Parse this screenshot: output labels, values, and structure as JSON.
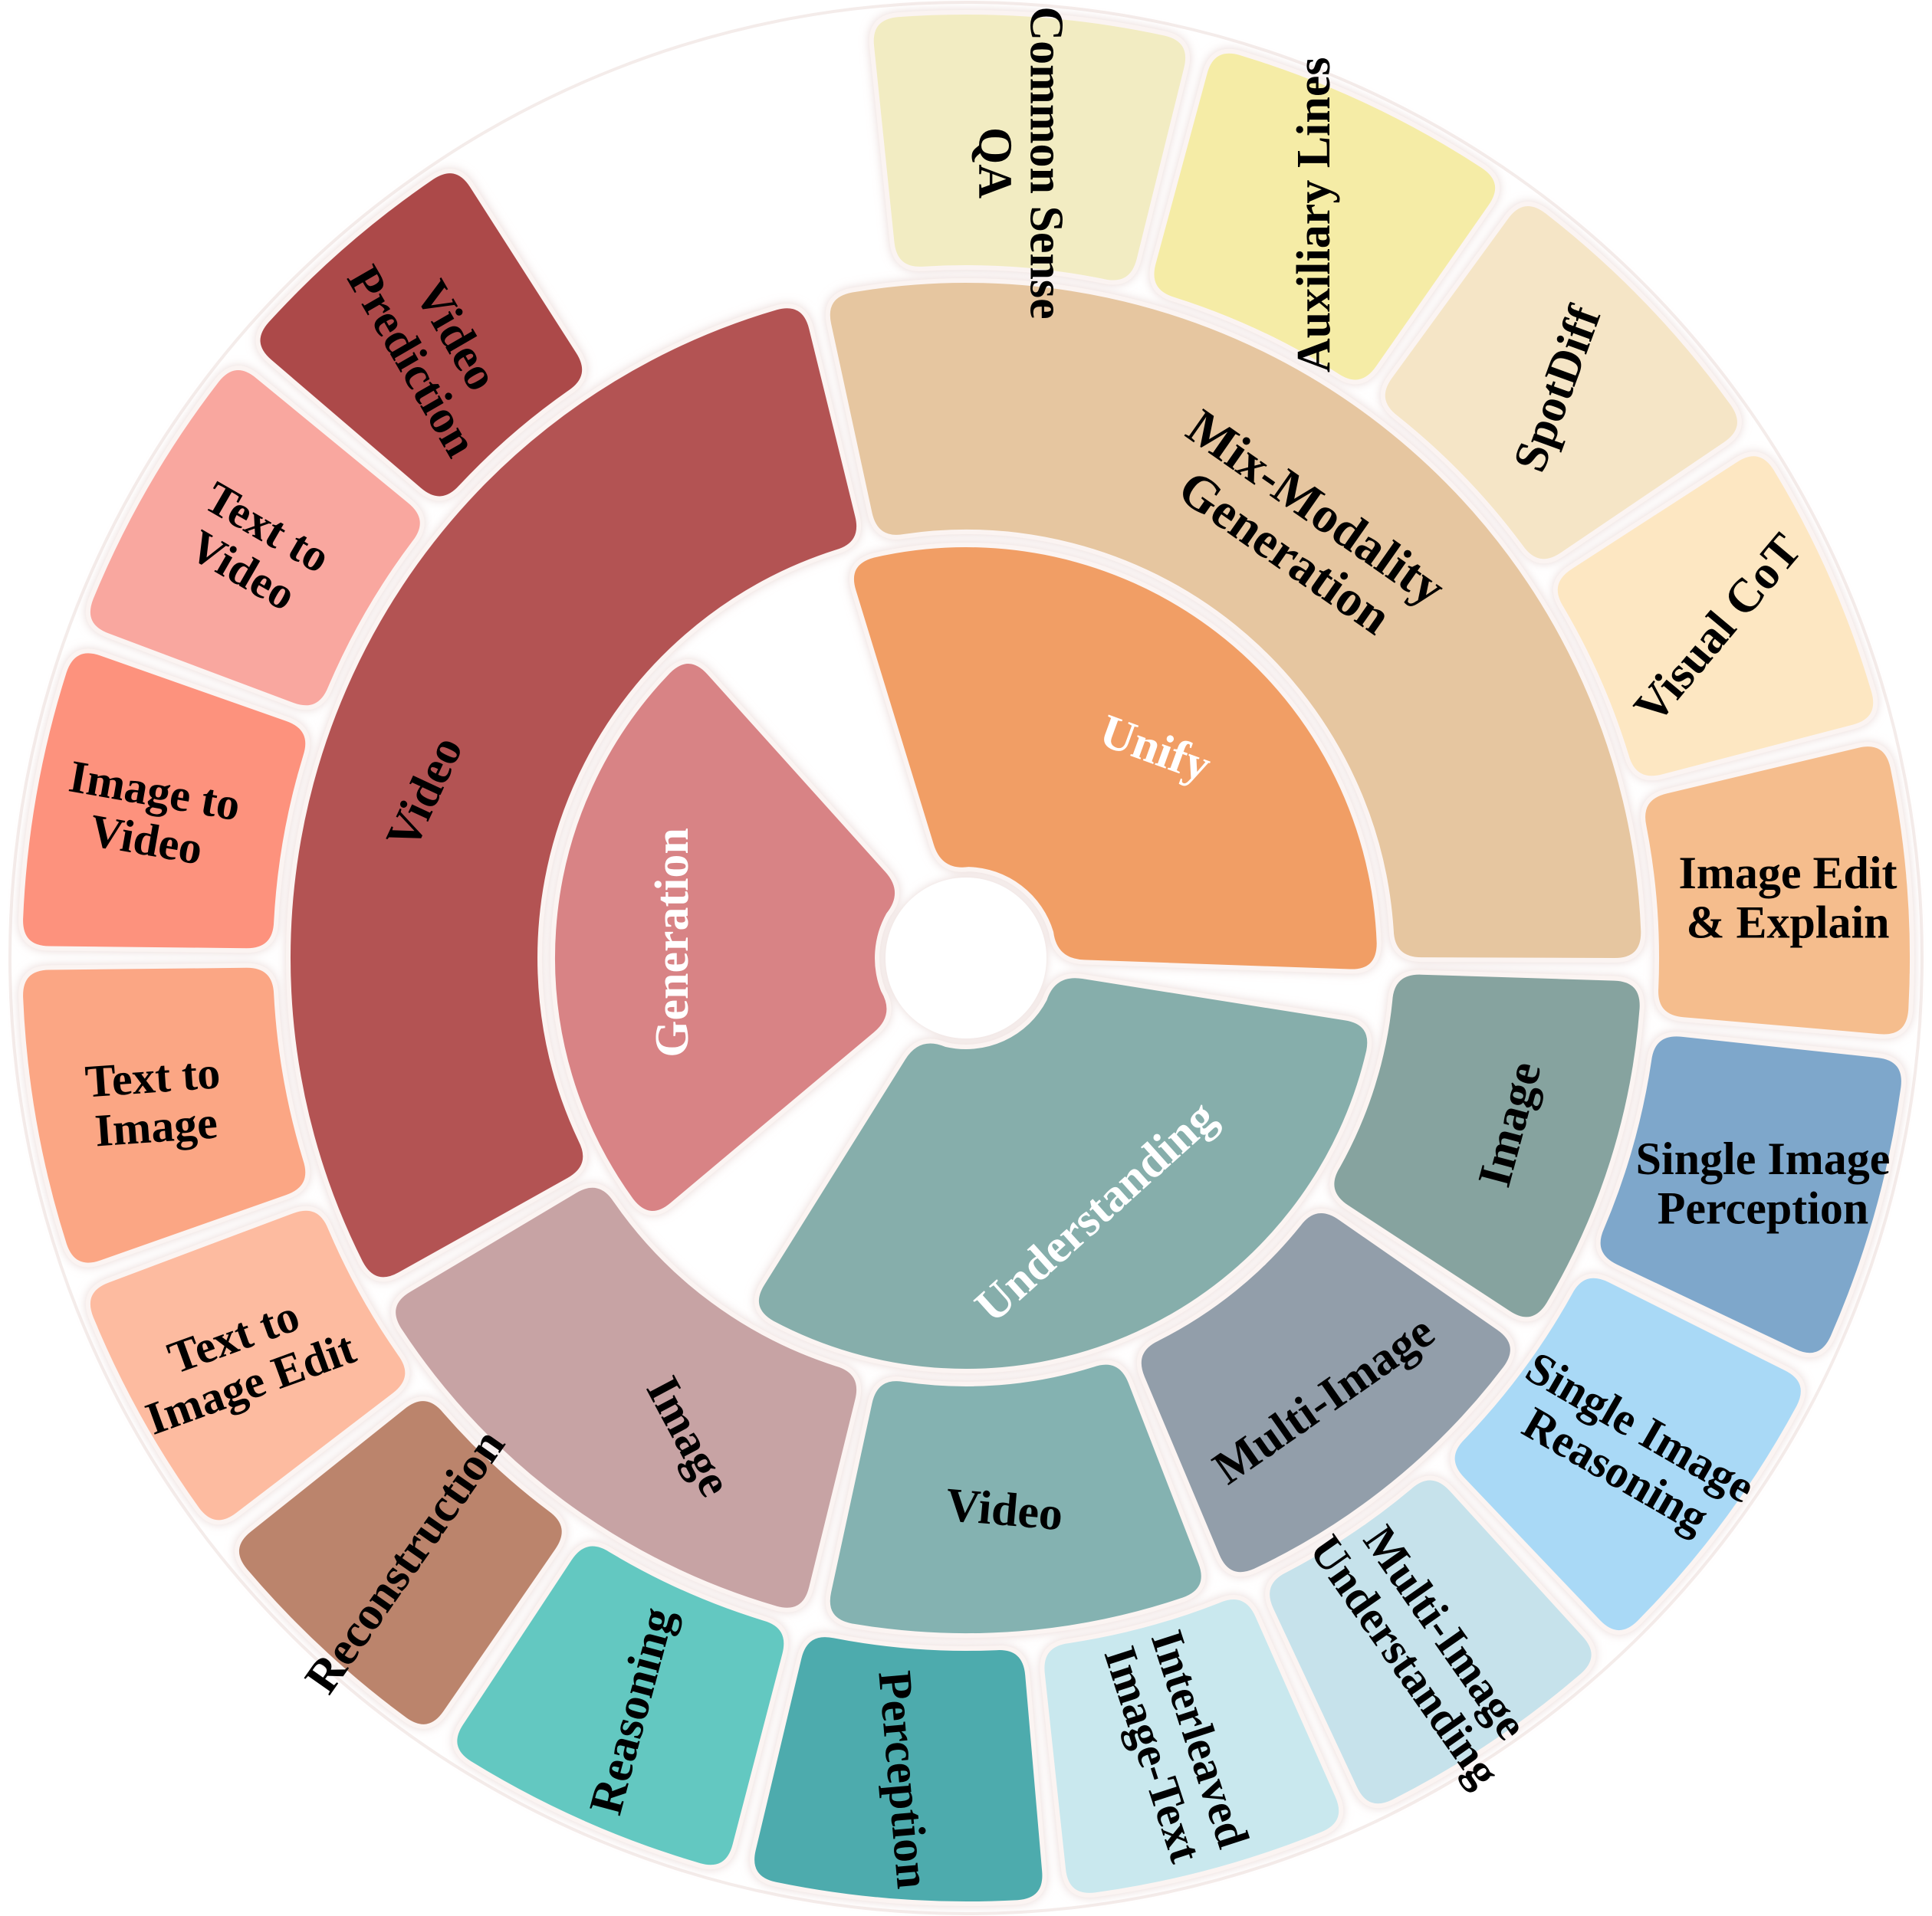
{
  "diagram": {
    "inner_ring": [
      {
        "id": "unify",
        "label": [
          "Unify"
        ],
        "color": "#f19e65",
        "text_color": "#ffffff"
      },
      {
        "id": "understanding",
        "label": [
          "Understanding"
        ],
        "color": "#86aeab",
        "text_color": "#ffffff"
      },
      {
        "id": "generation",
        "label": [
          "Generation"
        ],
        "color": "#d88385",
        "text_color": "#ffffff"
      }
    ],
    "middle_ring": [
      {
        "id": "mix-modality-generation",
        "label": [
          "Mix-Modality",
          "Generation"
        ],
        "color": "#e6c6a0",
        "text_color": "#000000"
      },
      {
        "id": "understanding-image",
        "label": [
          "Image"
        ],
        "color": "#86a39f",
        "text_color": "#000000"
      },
      {
        "id": "multi-image",
        "label": [
          "Multi-Image"
        ],
        "color": "#929eaa",
        "text_color": "#000000"
      },
      {
        "id": "understanding-video",
        "label": [
          "Video"
        ],
        "color": "#84b2b1",
        "text_color": "#000000"
      },
      {
        "id": "generation-image",
        "label": [
          "Image"
        ],
        "color": "#c7a3a4",
        "text_color": "#000000"
      },
      {
        "id": "generation-video",
        "label": [
          "Video"
        ],
        "color": "#b35253",
        "text_color": "#000000"
      }
    ],
    "outer_ring": [
      {
        "id": "common-sense-qa",
        "label": [
          "Common Sense",
          "QA"
        ],
        "color": "#f2ecc2",
        "text_color": "#000000"
      },
      {
        "id": "auxiliary-lines",
        "label": [
          "Auxiliary Lines"
        ],
        "color": "#f5eca6",
        "text_color": "#000000"
      },
      {
        "id": "spotdiff",
        "label": [
          "SpotDiff"
        ],
        "color": "#f5e5c6",
        "text_color": "#000000"
      },
      {
        "id": "visual-cot",
        "label": [
          "Visual CoT"
        ],
        "color": "#fde7c2",
        "text_color": "#000000"
      },
      {
        "id": "image-edit-explain",
        "label": [
          "Image Edit",
          "& Explain"
        ],
        "color": "#f5bd8d",
        "text_color": "#000000"
      },
      {
        "id": "single-image-perception",
        "label": [
          "Single Image",
          "Perception"
        ],
        "color": "#7ea7cb",
        "text_color": "#000000"
      },
      {
        "id": "single-image-reasoning",
        "label": [
          "Single Image",
          "Reasoning"
        ],
        "color": "#a9d9f6",
        "text_color": "#000000"
      },
      {
        "id": "multi-image-understanding",
        "label": [
          "Multi-Image",
          "Understanding"
        ],
        "color": "#c6e2eb",
        "text_color": "#000000"
      },
      {
        "id": "interleaved-image-text",
        "label": [
          "Interleaved",
          "Image-Text"
        ],
        "color": "#c9e8ee",
        "text_color": "#000000"
      },
      {
        "id": "perception",
        "label": [
          "Perception"
        ],
        "color": "#4eabad",
        "text_color": "#000000"
      },
      {
        "id": "reasoning",
        "label": [
          "Reasoning"
        ],
        "color": "#64c8c1",
        "text_color": "#000000"
      },
      {
        "id": "reconstruction",
        "label": [
          "Reconstruction"
        ],
        "color": "#bb846c",
        "text_color": "#000000"
      },
      {
        "id": "text-to-image-edit",
        "label": [
          "Text to",
          "Image Edit"
        ],
        "color": "#fdbba0",
        "text_color": "#000000"
      },
      {
        "id": "text-to-image",
        "label": [
          "Text to",
          "Image"
        ],
        "color": "#fba684",
        "text_color": "#000000"
      },
      {
        "id": "image-to-video",
        "label": [
          "Image to",
          "Video"
        ],
        "color": "#fd927d",
        "text_color": "#000000"
      },
      {
        "id": "text-to-video",
        "label": [
          "Text to",
          "Video"
        ],
        "color": "#f9a79f",
        "text_color": "#000000"
      },
      {
        "id": "video-prediction",
        "label": [
          "Video",
          "Prediction"
        ],
        "color": "#ac4a4a",
        "text_color": "#000000"
      }
    ]
  }
}
